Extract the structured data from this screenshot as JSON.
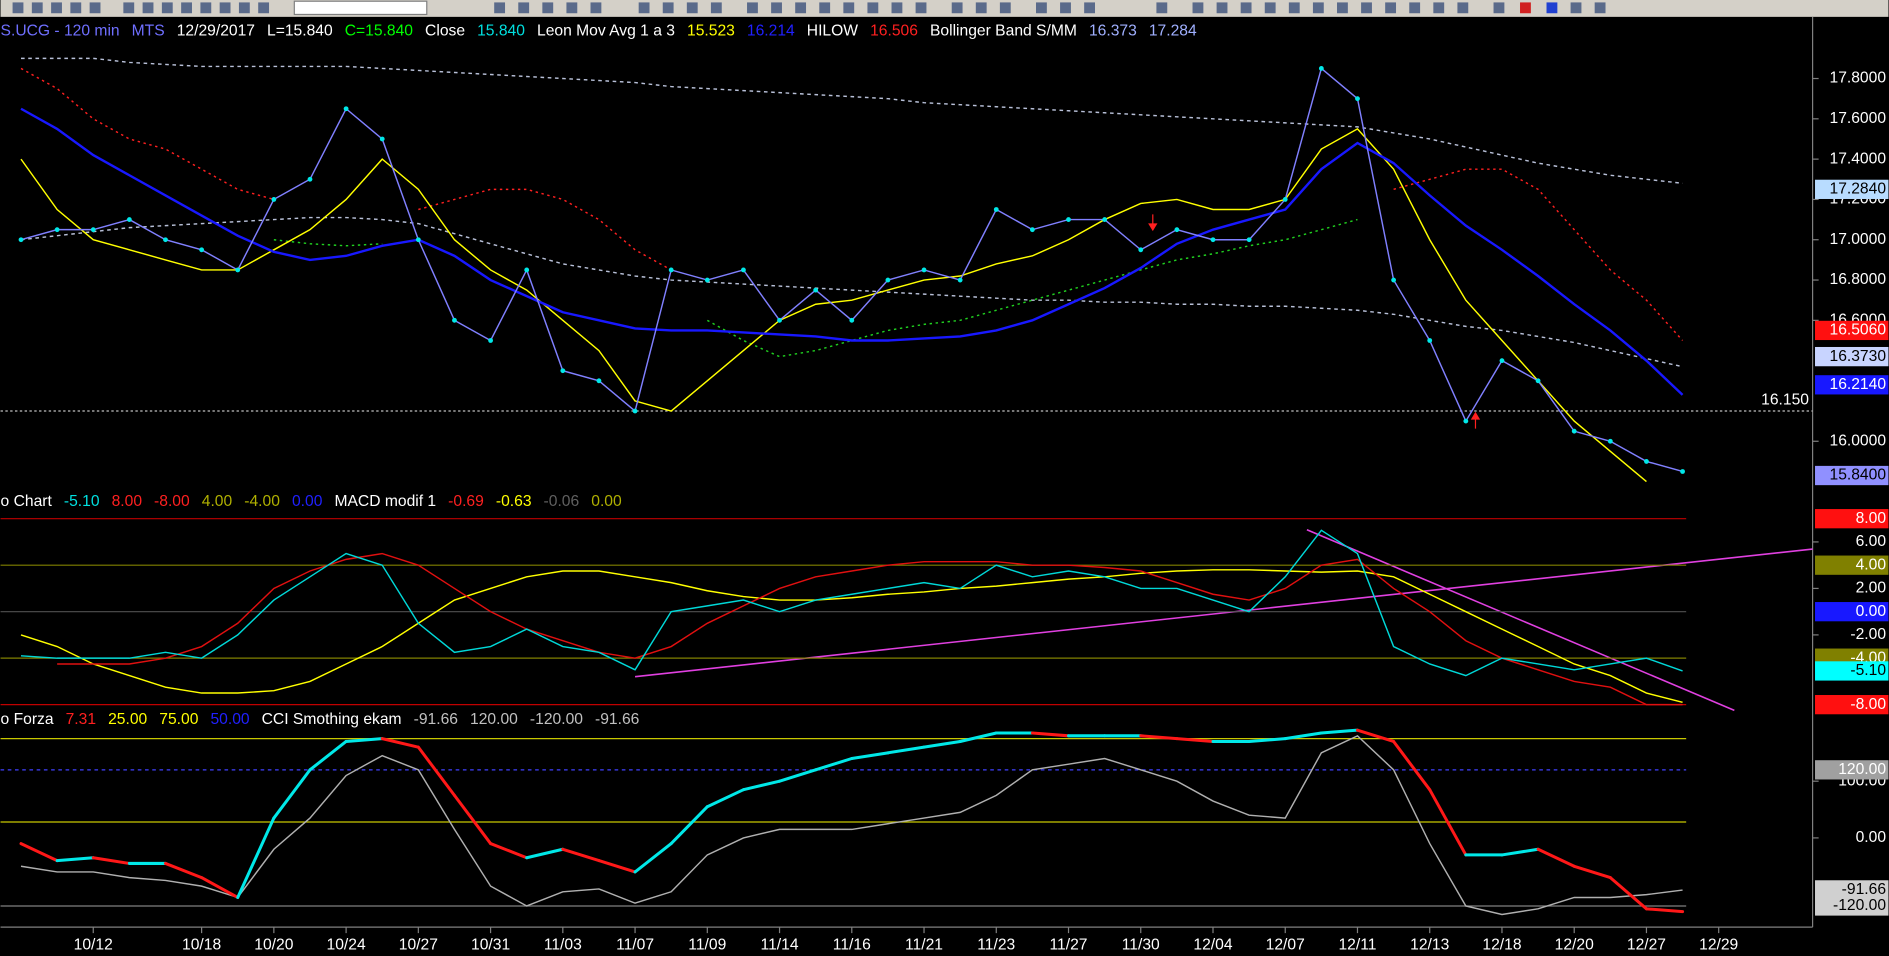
{
  "chart_data": [
    {
      "type": "line",
      "header": [
        {
          "text": "S.UCG - 120 min",
          "color": "#6f6fff"
        },
        {
          "text": "MTS",
          "color": "#6f6fff"
        },
        {
          "text": "12/29/2017",
          "color": "#ffffff"
        },
        {
          "text": "L=15.840",
          "color": "#ffffff"
        },
        {
          "text": "C=15.840",
          "color": "#00ff00"
        },
        {
          "text": "Close",
          "color": "#ffffff"
        },
        {
          "text": "15.840",
          "color": "#00e0e0"
        },
        {
          "text": "Leon Mov Avg 1 a 3",
          "color": "#ffffff"
        },
        {
          "text": "15.523",
          "color": "#ffff00"
        },
        {
          "text": "16.214",
          "color": "#2020ff"
        },
        {
          "text": "HILOW",
          "color": "#ffffff"
        },
        {
          "text": "16.506",
          "color": "#ff2020"
        },
        {
          "text": "Bollinger Band S/MM",
          "color": "#ffffff"
        },
        {
          "text": "16.373",
          "color": "#a0b0ff"
        },
        {
          "text": "17.284",
          "color": "#a0b0ff"
        }
      ],
      "ylim": [
        15.74,
        18.1
      ],
      "yticks": [
        {
          "value": 17.8,
          "label": "17.8000"
        },
        {
          "value": 17.6,
          "label": "17.6000"
        },
        {
          "value": 17.4,
          "label": "17.4000"
        },
        {
          "value": 17.2,
          "label": "17.2000"
        },
        {
          "value": 17.0,
          "label": "17.0000"
        },
        {
          "value": 16.8,
          "label": "16.8000"
        },
        {
          "value": 16.6,
          "label": "16.6000"
        },
        {
          "value": 16.0,
          "label": "16.0000"
        }
      ],
      "levels": [
        {
          "value": 17.25,
          "label": "17.2840",
          "bg": "#b8dcff",
          "fg": "#000000"
        },
        {
          "value": 16.55,
          "label": "16.5060",
          "bg": "#ff1010",
          "fg": "#ffffff"
        },
        {
          "value": 16.42,
          "label": "16.3730",
          "bg": "#c8d4ff",
          "fg": "#000000"
        },
        {
          "value": 16.28,
          "label": "16.2140",
          "bg": "#1818ff",
          "fg": "#ffffff"
        },
        {
          "value": 15.83,
          "label": "15.8400",
          "bg": "#9090ff",
          "fg": "#000000"
        }
      ],
      "hline": {
        "value": 16.15,
        "label": "16.150"
      },
      "series": [
        {
          "name": "Bollinger Band S/MM",
          "color": "#b8c0d8",
          "dash": "3 3",
          "values": [
            17.9,
            17.9,
            17.9,
            17.88,
            17.87,
            17.86,
            17.86,
            17.86,
            17.86,
            17.86,
            17.85,
            17.84,
            17.83,
            17.82,
            17.81,
            17.8,
            17.79,
            17.78,
            17.76,
            17.75,
            17.74,
            17.73,
            17.72,
            17.71,
            17.7,
            17.68,
            17.67,
            17.66,
            17.65,
            17.64,
            17.63,
            17.62,
            17.61,
            17.6,
            17.59,
            17.58,
            17.57,
            17.56,
            17.53,
            17.5,
            17.46,
            17.42,
            17.38,
            17.35,
            17.32,
            17.3,
            17.28,
            null
          ]
        },
        {
          "color": "#b8c0d8",
          "dash": "3 3",
          "values": [
            17.0,
            17.02,
            17.04,
            17.06,
            17.07,
            17.08,
            17.09,
            17.1,
            17.11,
            17.11,
            17.1,
            17.08,
            17.03,
            16.98,
            16.93,
            16.88,
            16.85,
            16.82,
            16.8,
            16.79,
            16.78,
            16.77,
            16.76,
            16.75,
            16.74,
            16.73,
            16.72,
            16.71,
            16.7,
            16.7,
            16.69,
            16.69,
            16.68,
            16.68,
            16.67,
            16.67,
            16.66,
            16.65,
            16.63,
            16.6,
            16.57,
            16.55,
            16.52,
            16.49,
            16.45,
            16.41,
            16.37,
            null
          ]
        },
        {
          "name": "HILOW",
          "color": "#ff2020",
          "dash": "2 3",
          "values": [
            17.85,
            17.75,
            17.6,
            17.5,
            17.45,
            17.35,
            17.25,
            17.2,
            null,
            null,
            null,
            17.15,
            17.2,
            17.25,
            17.25,
            17.2,
            17.1,
            16.95,
            16.85,
            null,
            null,
            null,
            null,
            null,
            null,
            null,
            null,
            null,
            null,
            null,
            null,
            null,
            null,
            null,
            null,
            null,
            null,
            null,
            17.25,
            17.3,
            17.35,
            17.35,
            17.25,
            17.05,
            16.85,
            16.7,
            16.5,
            null
          ]
        },
        {
          "color": "#20d020",
          "dash": "2 3",
          "values": [
            null,
            null,
            null,
            null,
            null,
            null,
            null,
            17.0,
            16.98,
            16.97,
            16.98,
            null,
            null,
            null,
            null,
            null,
            null,
            null,
            null,
            16.6,
            16.5,
            16.42,
            16.45,
            16.5,
            16.55,
            16.58,
            16.6,
            16.65,
            16.7,
            16.75,
            16.8,
            16.85,
            16.9,
            16.93,
            16.97,
            17.0,
            17.05,
            17.1,
            null,
            null,
            null,
            null,
            null,
            null,
            null,
            null,
            null,
            null
          ]
        },
        {
          "name": "Leon Mov Avg 1 a 3",
          "color": "#ffff00",
          "values": [
            17.4,
            17.15,
            17.0,
            16.95,
            16.9,
            16.85,
            16.85,
            16.95,
            17.05,
            17.2,
            17.4,
            17.25,
            17.0,
            16.85,
            16.75,
            16.6,
            16.45,
            16.2,
            16.15,
            16.3,
            16.45,
            16.6,
            16.68,
            16.7,
            16.75,
            16.8,
            16.82,
            16.88,
            16.92,
            17.0,
            17.1,
            17.18,
            17.2,
            17.15,
            17.15,
            17.2,
            17.45,
            17.55,
            17.35,
            17.0,
            16.7,
            16.5,
            16.3,
            16.1,
            15.95,
            15.8,
            null,
            null
          ]
        },
        {
          "color": "#1818ff",
          "width": 2,
          "values": [
            17.65,
            17.55,
            17.42,
            17.32,
            17.22,
            17.12,
            17.02,
            16.94,
            16.9,
            16.92,
            16.97,
            17.0,
            16.92,
            16.8,
            16.72,
            16.64,
            16.6,
            16.56,
            16.55,
            16.55,
            16.54,
            16.53,
            16.52,
            16.5,
            16.5,
            16.51,
            16.52,
            16.55,
            16.6,
            16.68,
            16.76,
            16.86,
            16.98,
            17.05,
            17.1,
            17.15,
            17.35,
            17.48,
            17.38,
            17.22,
            17.07,
            16.95,
            16.82,
            16.68,
            16.55,
            16.4,
            16.23,
            null
          ]
        },
        {
          "name": "Close",
          "color": "#8080ff",
          "dots": "#00e8e8",
          "values": [
            17.0,
            17.05,
            17.05,
            17.1,
            17.0,
            16.95,
            16.85,
            17.2,
            17.3,
            17.65,
            17.5,
            17.0,
            16.6,
            16.5,
            16.85,
            16.35,
            16.3,
            16.15,
            16.85,
            16.8,
            16.85,
            16.6,
            16.75,
            16.6,
            16.8,
            16.85,
            16.8,
            17.15,
            17.05,
            17.1,
            17.1,
            16.95,
            17.05,
            17.0,
            17.0,
            17.2,
            17.85,
            17.7,
            16.8,
            16.5,
            16.1,
            16.4,
            16.3,
            16.05,
            16.0,
            15.9,
            15.85,
            null
          ]
        }
      ]
    },
    {
      "type": "line",
      "header": [
        {
          "text": "o Chart",
          "color": "#ffffff"
        },
        {
          "text": "-5.10",
          "color": "#00e0e0"
        },
        {
          "text": "8.00",
          "color": "#ff2020"
        },
        {
          "text": "-8.00",
          "color": "#ff2020"
        },
        {
          "text": "4.00",
          "color": "#b0b000"
        },
        {
          "text": "-4.00",
          "color": "#b0b000"
        },
        {
          "text": "0.00",
          "color": "#2020ff"
        },
        {
          "text": "MACD modif 1",
          "color": "#ffffff"
        },
        {
          "text": "-0.69",
          "color": "#ff2020"
        },
        {
          "text": "-0.63",
          "color": "#ffff00"
        },
        {
          "text": "-0.06",
          "color": "#606060"
        },
        {
          "text": "0.00",
          "color": "#b0b000"
        }
      ],
      "ylim": [
        -8.7,
        8.6
      ],
      "yticks": [
        {
          "value": 6,
          "label": "6.00"
        },
        {
          "value": 2,
          "label": "2.00"
        },
        {
          "value": -2,
          "label": "-2.00"
        }
      ],
      "levels": [
        {
          "value": 8,
          "label": "8.00",
          "bg": "#ff1010",
          "fg": "#ffffff",
          "line": "#c00000"
        },
        {
          "value": 4,
          "label": "4.00",
          "bg": "#808000",
          "fg": "#ffffff",
          "line": "#808000"
        },
        {
          "value": 0,
          "label": "0.00",
          "bg": "#1818ff",
          "fg": "#ffffff",
          "line": "#505050"
        },
        {
          "value": -4,
          "label": "-4.00",
          "bg": "#808000",
          "fg": "#ffffff",
          "line": "#808000"
        },
        {
          "value": -5.1,
          "label": "-5.10",
          "bg": "#00ffff",
          "fg": "#000000"
        },
        {
          "value": -8,
          "label": "-8.00",
          "bg": "#ff1010",
          "fg": "#ffffff",
          "line": "#c00000"
        }
      ],
      "series": [
        {
          "color": "#ffff00",
          "values": [
            -2,
            -3,
            -4.5,
            -5.5,
            -6.5,
            -7,
            -7,
            -6.8,
            -6,
            -4.5,
            -3,
            -1,
            1,
            2,
            3,
            3.5,
            3.5,
            3,
            2.5,
            1.8,
            1.3,
            1,
            1,
            1.2,
            1.5,
            1.7,
            2,
            2.2,
            2.5,
            2.8,
            3,
            3.3,
            3.5,
            3.6,
            3.6,
            3.5,
            3.4,
            3.5,
            3,
            1.5,
            0,
            -1.5,
            -3,
            -4.5,
            -5.5,
            -7,
            -7.8,
            null
          ]
        },
        {
          "color": "#e01010",
          "values": [
            null,
            -4.5,
            -4.5,
            -4.5,
            -4,
            -3,
            -1,
            2,
            3.5,
            4.5,
            5,
            4,
            2,
            0,
            -1.5,
            -2.5,
            -3.5,
            -4,
            -3,
            -1,
            0.5,
            2,
            3,
            3.5,
            4,
            4.3,
            4.3,
            4.3,
            4,
            4,
            3.8,
            3.5,
            2.5,
            1.5,
            1,
            2,
            4,
            4.5,
            2,
            0,
            -2.5,
            -4,
            -5,
            -6,
            -6.5,
            -8,
            -8,
            null
          ]
        },
        {
          "color": "#00d8d8",
          "values": [
            -3.8,
            -4,
            -4,
            -4,
            -3.5,
            -4,
            -2,
            1,
            3,
            5,
            4,
            -1,
            -3.5,
            -3,
            -1.5,
            -3,
            -3.5,
            -5,
            0,
            0.5,
            1,
            0,
            1,
            1.5,
            2,
            2.5,
            2,
            4,
            3,
            3.5,
            3,
            2,
            2,
            1,
            0,
            3,
            7,
            5,
            -3,
            -4.5,
            -5.5,
            -4,
            -4.5,
            -5,
            -4.5,
            -4,
            -5.1,
            null
          ]
        }
      ]
    },
    {
      "type": "line",
      "header": [
        {
          "text": "o Forza",
          "color": "#ffffff"
        },
        {
          "text": "7.31",
          "color": "#ff2020"
        },
        {
          "text": "25.00",
          "color": "#ffff00"
        },
        {
          "text": "75.00",
          "color": "#ffff00"
        },
        {
          "text": "50.00",
          "color": "#2020ff"
        },
        {
          "text": "CCI Smothing ekam",
          "color": "#ffffff"
        },
        {
          "text": "-91.66",
          "color": "#c0c0c0"
        },
        {
          "text": "120.00",
          "color": "#c0c0c0"
        },
        {
          "text": "-120.00",
          "color": "#c0c0c0"
        },
        {
          "text": "-91.66",
          "color": "#c0c0c0"
        }
      ],
      "categories": [
        null,
        null,
        "10/12",
        null,
        null,
        "10/18",
        null,
        "10/20",
        null,
        "10/24",
        null,
        "10/27",
        null,
        "10/31",
        null,
        "11/03",
        null,
        "11/07",
        null,
        "11/09",
        null,
        "11/14",
        null,
        "11/16",
        null,
        "11/21",
        null,
        "11/23",
        null,
        "11/27",
        null,
        "11/30",
        null,
        "12/04",
        null,
        "12/07",
        null,
        "12/11",
        null,
        "12/13",
        null,
        "12/18",
        null,
        "12/20",
        null,
        "12/27",
        null,
        "12/29"
      ],
      "ylim": [
        -153,
        193
      ],
      "yticks": [
        {
          "value": 100,
          "label": "100.00"
        },
        {
          "value": 0,
          "label": "0.00"
        }
      ],
      "hlines": [
        {
          "value": 175,
          "color": "#c8c800"
        },
        {
          "value": 28,
          "color": "#c8c800"
        },
        {
          "value": 120,
          "color": "#4040ff",
          "dash": "3 3"
        },
        {
          "value": -120,
          "color": "#808080"
        }
      ],
      "levels": [
        {
          "value": 120,
          "label": "120.00",
          "bg": "#a0a0a0",
          "fg": "#ffffff"
        },
        {
          "value": -91.66,
          "label": "-91.66",
          "bg": "#d0d0d0",
          "fg": "#000000"
        },
        {
          "value": -120,
          "label": "-120.00",
          "bg": "#d0d0d0",
          "fg": "#000000"
        }
      ],
      "series": [
        {
          "color": "#b0b0b0",
          "values": [
            -50,
            -60,
            -60,
            -70,
            -75,
            -85,
            -105,
            -20,
            35,
            110,
            145,
            120,
            15,
            -85,
            -120,
            -95,
            -90,
            -115,
            -95,
            -30,
            0,
            15,
            15,
            15,
            25,
            35,
            45,
            75,
            120,
            130,
            140,
            120,
            100,
            65,
            40,
            35,
            150,
            180,
            120,
            -10,
            -120,
            -135,
            -125,
            -105,
            -105,
            -100,
            -92,
            null
          ]
        },
        {
          "color": "#00e8e8",
          "down": "#ff1818",
          "width": 2.5,
          "values": [
            -10,
            -40,
            -35,
            -45,
            -45,
            -70,
            -105,
            35,
            120,
            170,
            175,
            160,
            75,
            -10,
            -35,
            -20,
            -40,
            -60,
            -10,
            55,
            85,
            100,
            120,
            140,
            150,
            160,
            170,
            185,
            185,
            180,
            180,
            180,
            175,
            170,
            170,
            175,
            185,
            190,
            170,
            85,
            -30,
            -30,
            -20,
            -50,
            -70,
            -125,
            -130,
            null
          ]
        }
      ]
    }
  ]
}
